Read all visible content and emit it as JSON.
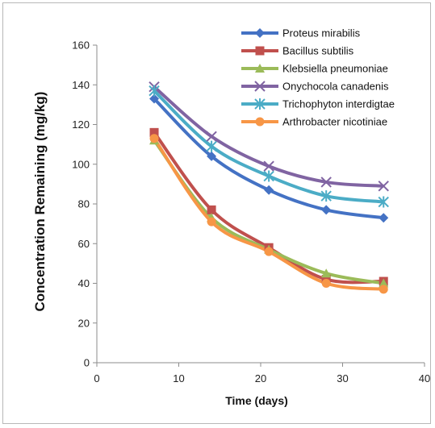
{
  "chart_data": {
    "type": "line",
    "title": "",
    "xlabel": "Time (days)",
    "ylabel": "Concentration Remaining (mg/kg)",
    "xlim": [
      0,
      40
    ],
    "ylim": [
      0,
      160
    ],
    "xticks": [
      0,
      10,
      20,
      30,
      40
    ],
    "yticks": [
      0,
      20,
      40,
      60,
      80,
      100,
      120,
      140,
      160
    ],
    "grid": false,
    "legend_position": "top-right",
    "x": [
      7,
      14,
      21,
      28,
      35
    ],
    "series": [
      {
        "name": "Proteus mirabilis",
        "color": "#4472C4",
        "marker": "diamond",
        "values": [
          133,
          104,
          87,
          77,
          73
        ]
      },
      {
        "name": "Bacillus subtilis",
        "color": "#C0504D",
        "marker": "square",
        "values": [
          116,
          77,
          58,
          42,
          41
        ]
      },
      {
        "name": "Klebsiella pneumoniae",
        "color": "#9BBB59",
        "marker": "triangle",
        "values": [
          112,
          73,
          57,
          45,
          40
        ]
      },
      {
        "name": "Onychocola canadenis",
        "color": "#8064A2",
        "marker": "x",
        "values": [
          139,
          114,
          99,
          91,
          89
        ]
      },
      {
        "name": "Trichophyton interdigtae",
        "color": "#4BACC6",
        "marker": "star",
        "values": [
          137,
          109,
          94,
          84,
          81
        ]
      },
      {
        "name": "Arthrobacter nicotiniae",
        "color": "#F79646",
        "marker": "circle",
        "values": [
          113,
          71,
          56,
          40,
          37
        ]
      }
    ]
  }
}
